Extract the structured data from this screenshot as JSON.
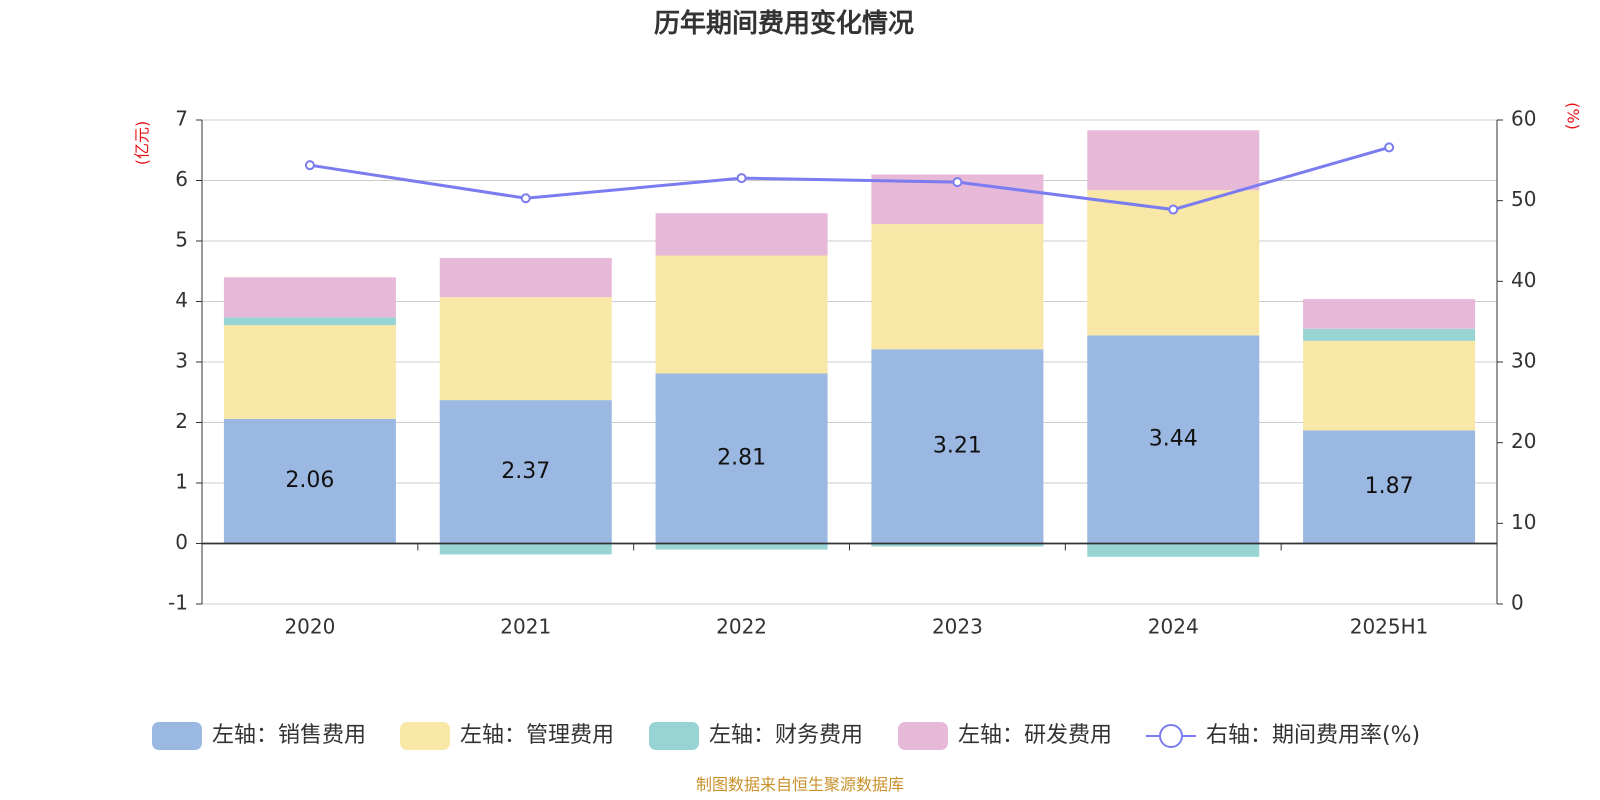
{
  "chart_data": {
    "type": "bar",
    "title": "历年期间费用变化情况",
    "categories": [
      "2020",
      "2021",
      "2022",
      "2023",
      "2024",
      "2025H1"
    ],
    "left_axis": {
      "unit": "(亿元)",
      "range": [
        -1,
        7
      ],
      "ticks": [
        "-1",
        "0",
        "1",
        "2",
        "3",
        "4",
        "5",
        "6",
        "7"
      ]
    },
    "right_axis": {
      "unit": "(%)",
      "range": [
        0,
        60
      ],
      "ticks": [
        "0",
        "10",
        "20",
        "30",
        "40",
        "50",
        "60"
      ]
    },
    "series": [
      {
        "name": "左轴：销售费用",
        "kind": "bar",
        "color": "#9ab8e1",
        "values": [
          2.06,
          2.37,
          2.81,
          3.21,
          3.44,
          1.87
        ],
        "labels": [
          "2.06",
          "2.37",
          "2.81",
          "3.21",
          "3.44",
          "1.87"
        ]
      },
      {
        "name": "左轴：管理费用",
        "kind": "bar",
        "color": "#f8e7a7",
        "values": [
          1.55,
          1.7,
          1.95,
          2.07,
          2.4,
          1.48
        ]
      },
      {
        "name": "左轴：财务费用",
        "kind": "bar",
        "color": "#97d4d3",
        "values": [
          0.13,
          -0.18,
          -0.1,
          -0.05,
          -0.22,
          0.2
        ]
      },
      {
        "name": "左轴：研发费用",
        "kind": "bar",
        "color": "#e7b9d9",
        "values": [
          0.66,
          0.65,
          0.7,
          0.82,
          0.99,
          0.49
        ]
      },
      {
        "name": "右轴：期间费用率(%)",
        "kind": "line",
        "color": "#7b7cf0",
        "values": [
          54.4,
          50.3,
          52.8,
          52.3,
          48.9,
          56.6
        ]
      }
    ],
    "grid": true,
    "legend_position": "bottom"
  },
  "footer": {
    "source": "制图数据来自恒生聚源数据库"
  }
}
